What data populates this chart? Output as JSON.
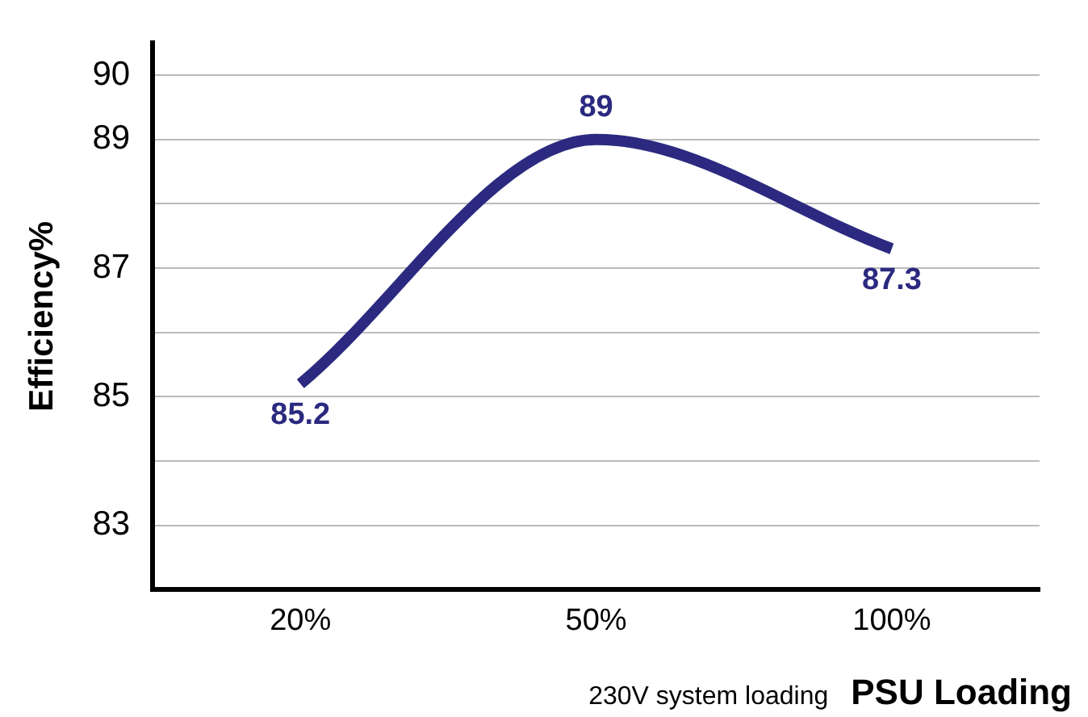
{
  "chart_data": {
    "type": "line",
    "ylabel": "Efficiency%",
    "xlabel": "PSU Loading",
    "annotations": [
      "230V system loading"
    ],
    "categories": [
      "20%",
      "50%",
      "100%"
    ],
    "series": [
      {
        "color": "#2b2a80",
        "values": [
          85.2,
          89,
          87.3
        ]
      }
    ],
    "ylim": [
      82,
      90.5
    ],
    "yticks": [
      83,
      {
        "value": 84,
        "label": null
      },
      85,
      {
        "value": 86,
        "label": null
      },
      87,
      {
        "value": 88,
        "label": null
      },
      89,
      90
    ],
    "grid": "y",
    "legend": false,
    "data_labels": true,
    "marker": "none",
    "line_style": "solid"
  }
}
